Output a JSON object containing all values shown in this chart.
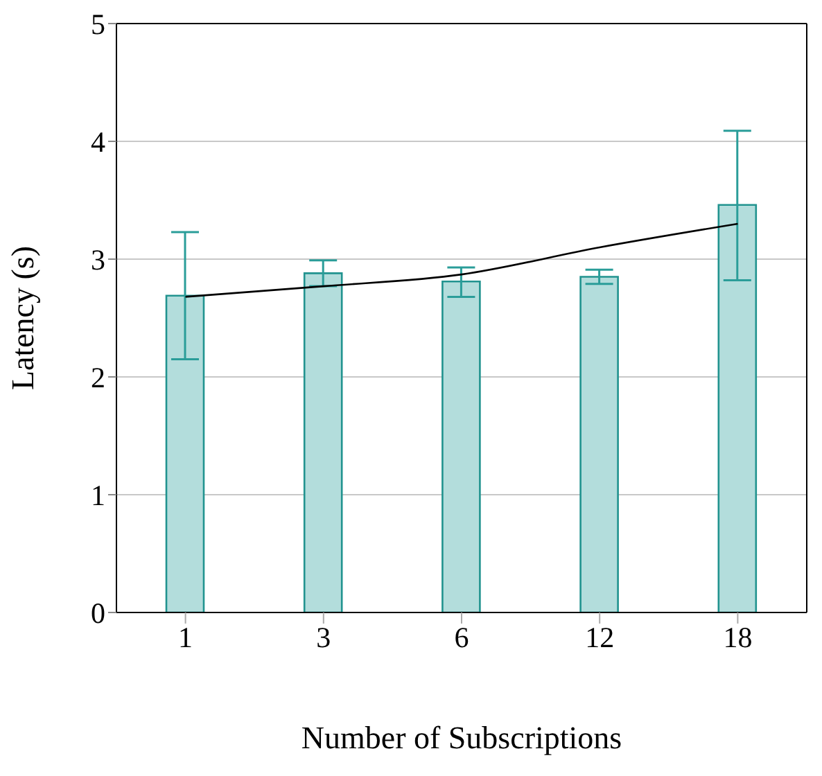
{
  "chart_data": {
    "type": "bar",
    "xlabel": "Number of Subscriptions",
    "ylabel": "Latency (s)",
    "categories": [
      "1",
      "3",
      "6",
      "12",
      "18"
    ],
    "series": [
      {
        "color": "#b3dddc",
        "values": [
          2.69,
          2.88,
          2.81,
          2.85,
          3.46
        ],
        "errors": [
          [
            2.15,
            3.23
          ],
          [
            2.77,
            2.99
          ],
          [
            2.68,
            2.93
          ],
          [
            2.79,
            2.91
          ],
          [
            2.82,
            4.09
          ]
        ]
      },
      {
        "type": "line",
        "color": "#000000",
        "x": [
          "1",
          "3",
          "6",
          "12",
          "18"
        ],
        "values": [
          2.68,
          2.77,
          2.87,
          3.1,
          3.3
        ]
      }
    ],
    "ylim": [
      0,
      5
    ],
    "yticks": [
      0,
      1,
      2,
      3,
      4,
      5
    ],
    "grid": "y",
    "marker": "none",
    "line_style": "solid"
  }
}
